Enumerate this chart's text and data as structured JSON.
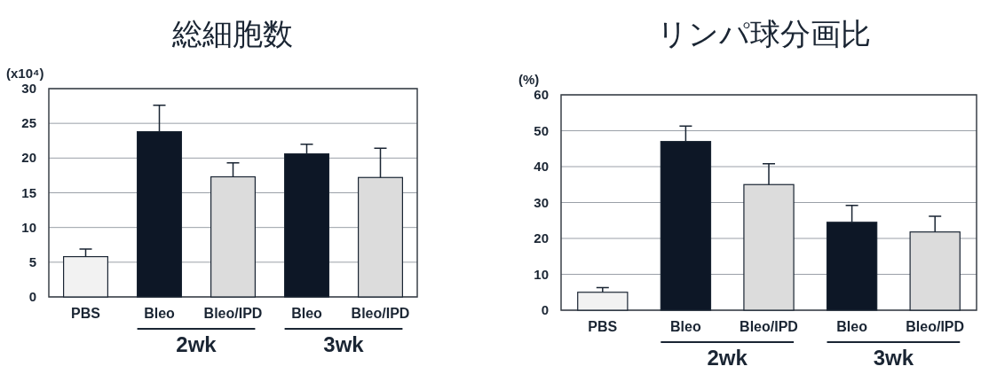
{
  "chart_data": [
    {
      "type": "bar",
      "title": "総細胞数",
      "ylabel": "(x10⁴)",
      "categories": [
        "PBS",
        "Bleo",
        "Bleo/IPD",
        "Bleo",
        "Bleo/IPD"
      ],
      "values": [
        5.8,
        23.8,
        17.3,
        20.6,
        17.2
      ],
      "errors": [
        [
          5.8,
          6.9
        ],
        [
          23.8,
          27.6
        ],
        [
          17.3,
          19.3
        ],
        [
          20.6,
          22.0
        ],
        [
          17.2,
          21.4
        ]
      ],
      "colors": [
        "#f2f2f2",
        "#0d1726",
        "#dcdcdc",
        "#0d1726",
        "#dcdcdc"
      ],
      "ylim": [
        0,
        30
      ],
      "yticks": [
        0,
        5,
        10,
        15,
        20,
        25,
        30
      ],
      "grid": "y",
      "annotations": [
        "2wk",
        "3wk"
      ]
    },
    {
      "type": "bar",
      "title": "リンパ球分画比",
      "ylabel": "(%)",
      "categories": [
        "PBS",
        "Bleo",
        "Bleo/IPD",
        "Bleo",
        "Bleo/IPD"
      ],
      "values": [
        5.0,
        47,
        35,
        24.5,
        21.8
      ],
      "errors": [
        [
          5.0,
          6.3
        ],
        [
          47,
          51.3
        ],
        [
          35,
          40.8
        ],
        [
          24.5,
          29.2
        ],
        [
          21.8,
          26.2
        ]
      ],
      "colors": [
        "#f2f2f2",
        "#0d1726",
        "#dcdcdc",
        "#0d1726",
        "#dcdcdc"
      ],
      "ylim": [
        0,
        60
      ],
      "yticks": [
        0,
        10,
        20,
        30,
        40,
        50,
        60
      ],
      "grid": "y",
      "annotations": [
        "2wk",
        "3wk"
      ]
    }
  ]
}
